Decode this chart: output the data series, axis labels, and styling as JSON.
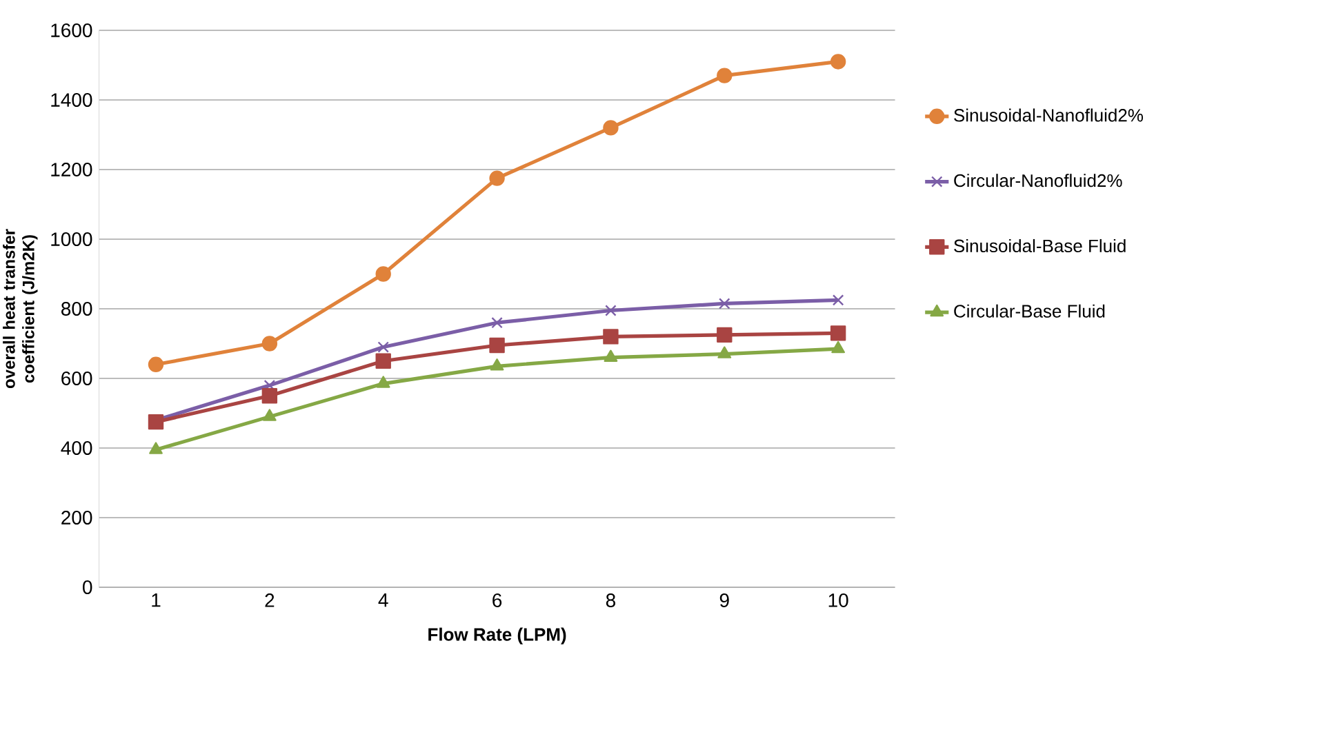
{
  "chart_data": {
    "type": "line",
    "xlabel": "Flow Rate (LPM)",
    "ylabel": "overall heat transfer coefficient (J/m2K)",
    "categories": [
      "1",
      "2",
      "4",
      "6",
      "8",
      "9",
      "10"
    ],
    "ylim": [
      0,
      1600
    ],
    "yticks": [
      0,
      200,
      400,
      600,
      800,
      1000,
      1200,
      1400,
      1600
    ],
    "grid": "y",
    "legend": "right",
    "series": [
      {
        "name": "Sinusoidal-Nanofluid2%",
        "color": "#e0823a",
        "marker": "circle",
        "values": [
          640,
          700,
          900,
          1175,
          1320,
          1470,
          1510
        ]
      },
      {
        "name": "Circular-Nanofluid2%",
        "color": "#7b5ea7",
        "marker": "cross",
        "values": [
          480,
          580,
          690,
          760,
          795,
          815,
          825
        ]
      },
      {
        "name": "Sinusoidal-Base Fluid",
        "color": "#a94442",
        "marker": "square",
        "values": [
          475,
          550,
          650,
          695,
          720,
          725,
          730
        ]
      },
      {
        "name": "Circular-Base Fluid",
        "color": "#85a845",
        "marker": "triangle",
        "values": [
          395,
          490,
          585,
          635,
          660,
          670,
          685
        ]
      }
    ]
  }
}
